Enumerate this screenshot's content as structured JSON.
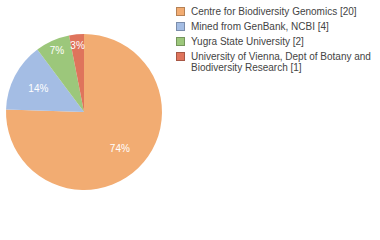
{
  "chart_data": {
    "type": "pie",
    "categories": [
      "Centre for Biodiversity Genomics [20]",
      "Mined from GenBank, NCBI [4]",
      "Yugra State University [2]",
      "University of Vienna, Dept of Botany and Biodiversity Research [1]"
    ],
    "values": [
      74,
      14,
      7,
      3
    ],
    "value_labels": [
      "74%",
      "14%",
      "7%",
      "3%"
    ],
    "colors": [
      "#f2ac72",
      "#a4bde4",
      "#9cc77b",
      "#df745c"
    ],
    "data_labels": true,
    "legend": "right"
  }
}
